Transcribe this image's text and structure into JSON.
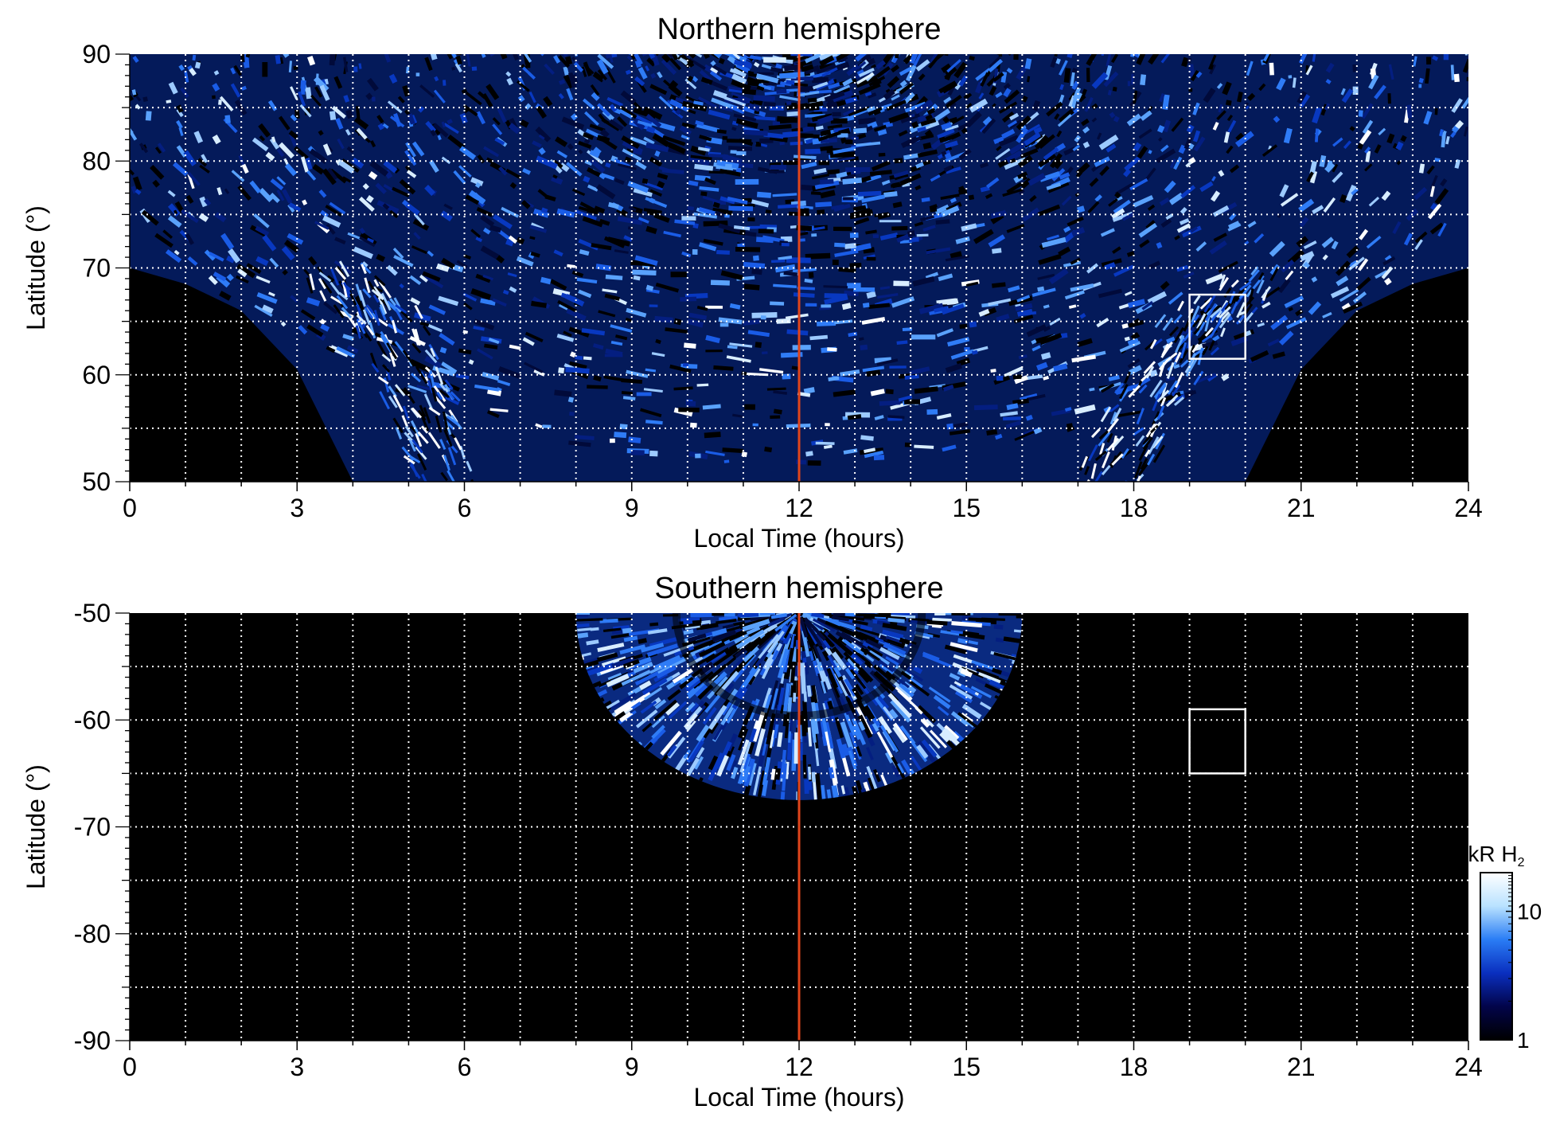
{
  "chart_data": [
    {
      "type": "heatmap",
      "title": "Northern hemisphere",
      "xlabel": "Local Time (hours)",
      "ylabel": "Latitude (°)",
      "xlim": [
        0,
        24
      ],
      "ylim": [
        50,
        90
      ],
      "xticks": [
        "0",
        "3",
        "6",
        "9",
        "12",
        "15",
        "18",
        "21",
        "24"
      ],
      "yticks": [
        "50",
        "60",
        "70",
        "80",
        "90"
      ],
      "grid": true,
      "grid_x_step_hours": 1,
      "grid_y_step_deg": 5,
      "reference_line": {
        "local_time": 12,
        "color": "#e0451b"
      },
      "highlight_box": {
        "local_time": [
          19,
          20
        ],
        "latitude": [
          61.5,
          67.5
        ],
        "color": "#ffffff"
      },
      "coverage_boundary": [
        [
          0,
          70
        ],
        [
          1,
          68.5
        ],
        [
          2,
          66
        ],
        [
          3,
          60.5
        ],
        [
          4,
          50
        ],
        [
          20,
          50
        ],
        [
          21,
          60.5
        ],
        [
          22,
          66
        ],
        [
          23,
          68.5
        ],
        [
          24,
          70
        ]
      ],
      "auroral_oval_bands": [
        [
          [
            3.5,
            70
          ],
          [
            4.5,
            66
          ],
          [
            5.2,
            58
          ],
          [
            5.6,
            50
          ]
        ],
        [
          [
            17.6,
            50
          ],
          [
            18.3,
            58
          ],
          [
            19.2,
            65
          ],
          [
            20.5,
            70
          ]
        ]
      ]
    },
    {
      "type": "heatmap",
      "title": "Southern hemisphere",
      "xlabel": "Local Time (hours)",
      "ylabel": "Latitude (°)",
      "xlim": [
        0,
        24
      ],
      "ylim": [
        -90,
        -50
      ],
      "xticks": [
        "0",
        "3",
        "6",
        "9",
        "12",
        "15",
        "18",
        "21",
        "24"
      ],
      "yticks": [
        "-50",
        "-60",
        "-70",
        "-80",
        "-90"
      ],
      "grid": true,
      "grid_x_step_hours": 1,
      "grid_y_step_deg": 5,
      "reference_line": {
        "local_time": 12,
        "color": "#e0451b"
      },
      "highlight_box": {
        "local_time": [
          19,
          20
        ],
        "latitude": [
          -65,
          -59
        ],
        "color": "#ffffff"
      },
      "coverage_region": {
        "top_latitude": -50,
        "local_time_range_at_top": [
          8,
          16
        ],
        "lowest_latitude": -67.5,
        "center_local_time": 12
      },
      "colorbar": {
        "label": "kR H₂",
        "label_main": "kR H",
        "label_sub": "2",
        "scale": "log",
        "range": [
          1,
          20
        ],
        "tick_labels": [
          "1",
          "10"
        ],
        "tick_values": [
          1,
          10
        ],
        "colors": [
          "#000000",
          "#02044a",
          "#0a2fbf",
          "#2a7df5",
          "#b9e2ff",
          "#ffffff"
        ]
      }
    }
  ]
}
